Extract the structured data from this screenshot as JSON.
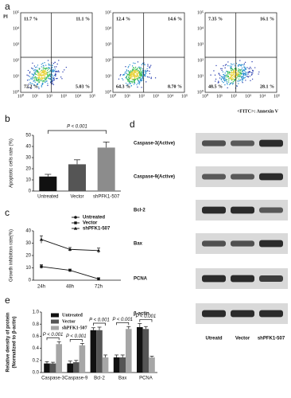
{
  "chart_data": [
    {
      "type": "flow",
      "label": "a",
      "y_axis_label": "PI",
      "x_axis_label": "<FITC>: Annexin V",
      "axis_ticks": [
        "10⁰",
        "10¹",
        "10²",
        "10³",
        "10⁴",
        "10⁵"
      ],
      "plots": [
        {
          "values": [
            11.7,
            11.1,
            72.2,
            5.03
          ],
          "value_labels": [
            "11.7 %",
            "11.1 %",
            "72.2 %",
            "5.03 %"
          ]
        },
        {
          "values": [
            12.4,
            14.6,
            64.3,
            8.7
          ],
          "value_labels": [
            "12.4 %",
            "14.6 %",
            "64.3 %",
            "8.70 %"
          ]
        },
        {
          "values": [
            7.35,
            16.1,
            48.5,
            28.1
          ],
          "value_labels": [
            "7.35 %",
            "16.1 %",
            "48.5 %",
            "28.1 %"
          ]
        }
      ]
    },
    {
      "type": "bar",
      "label": "b",
      "ylabel": "Apoptotic cells rate (%)",
      "categories": [
        "Untreated",
        "Vector",
        "shPFK1-507"
      ],
      "values": [
        13,
        24,
        39
      ],
      "errors": [
        2,
        4,
        5
      ],
      "colors": [
        "#111111",
        "#555555",
        "#8c8c8c"
      ],
      "ylim": [
        0,
        50
      ],
      "yticks": [
        0,
        10,
        20,
        30,
        40,
        50
      ],
      "annotation": "P < 0.001"
    },
    {
      "type": "line",
      "label": "c",
      "ylabel": "Growth inhibition rate(%)",
      "categories": [
        "24h",
        "48h",
        "72h"
      ],
      "series": [
        {
          "name": "Untreated",
          "color": "#111111",
          "marker": "circle",
          "values": [
            null,
            null,
            null
          ]
        },
        {
          "name": "Vector",
          "color": "#111111",
          "marker": "square",
          "values": [
            11,
            8,
            1
          ],
          "errors": [
            1.5,
            1,
            1
          ]
        },
        {
          "name": "shPFK1-507",
          "color": "#111111",
          "marker": "triangle",
          "values": [
            33,
            25,
            24
          ],
          "errors": [
            3,
            1.5,
            2
          ]
        }
      ],
      "ylim": [
        0,
        40
      ],
      "yticks": [
        0,
        10,
        20,
        30,
        40
      ]
    },
    {
      "type": "blot",
      "label": "d",
      "rows": [
        "Caspase-3(Active)",
        "Caspase-9(Active)",
        "Bcl-2",
        "Bax",
        "PCNA",
        "β-actin"
      ],
      "lanes": [
        "Utreatd",
        "Vector",
        "shPFK1-507"
      ]
    },
    {
      "type": "bar",
      "label": "e",
      "ylabel": [
        "Relative density of protein",
        "(Normalized  to β-actin)"
      ],
      "categories": [
        "Caspase-3",
        "Caspase-9",
        "Bcl-2",
        "Bax",
        "PCNA"
      ],
      "series": [
        {
          "name": "Untreated",
          "color": "#111111",
          "values": [
            0.15,
            0.15,
            0.7,
            0.25,
            0.75
          ],
          "errors": [
            0.03,
            0.04,
            0.04,
            0.04,
            0.06
          ]
        },
        {
          "name": "Vector",
          "color": "#555555",
          "values": [
            0.15,
            0.17,
            0.7,
            0.25,
            0.72
          ],
          "errors": [
            0.02,
            0.03,
            0.05,
            0.04,
            0.04
          ]
        },
        {
          "name": "shPFK1-507",
          "color": "#a6a6a6",
          "values": [
            0.47,
            0.45,
            0.25,
            0.72,
            0.25
          ],
          "errors": [
            0.04,
            0.03,
            0.04,
            0.04,
            0.02
          ]
        }
      ],
      "ylim": [
        0,
        1.0
      ],
      "yticks": [
        {
          "value": 0,
          "label": "0.0"
        },
        0.2,
        0.4,
        0.6,
        0.8,
        {
          "value": 1.0,
          "label": "1.0"
        }
      ],
      "annotations": [
        "P < 0.001",
        "P < 0.001",
        "P < 0.001",
        "P < 0.001",
        "P < 0.001"
      ]
    }
  ]
}
